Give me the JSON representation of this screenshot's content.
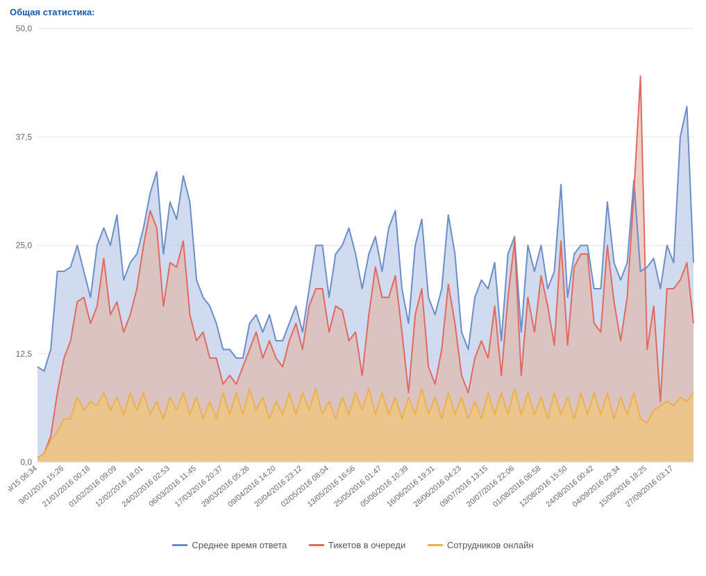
{
  "title": "Общая статистика:",
  "chart": {
    "type": "area",
    "background": "#ffffff",
    "grid_color": "#e6e6e6",
    "axis_text_color": "#666666",
    "axis_fontsize": 12,
    "x_label_fontsize": 11,
    "x_label_rotation": -40,
    "ylim": [
      0,
      50
    ],
    "ytick_format": "comma_decimal",
    "yticks": [
      "0,0",
      "12,5",
      "25,0",
      "37,5",
      "50,0"
    ],
    "ytick_values": [
      0,
      12.5,
      25,
      37.5,
      50
    ],
    "x_labels": [
      "9/15 06:34",
      "9/01/2016 15:26",
      "21/01/2016 00:18",
      "01/02/2016 09:09",
      "12/02/2016 18:01",
      "24/02/2016 02:53",
      "06/03/2016 11:45",
      "17/03/2016 20:37",
      "29/03/2016 05:28",
      "09/04/2016 14:20",
      "20/04/2016 23:12",
      "02/05/2016 08:04",
      "13/05/2016 16:56",
      "25/05/2016 01:47",
      "05/06/2016 10:39",
      "16/06/2016 19:31",
      "28/06/2016 04:23",
      "09/07/2016 13:15",
      "20/07/2016 22:06",
      "01/08/2016 06:58",
      "12/08/2016 15:50",
      "24/08/2016 00:42",
      "04/09/2016 09:34",
      "15/09/2016 18:25",
      "27/09/2016 03:17"
    ],
    "x_label_step": 4,
    "series": [
      {
        "name": "Среднее время ответа",
        "stroke": "#6b8dc8",
        "fill": "#b8c7e6",
        "fill_opacity": 0.65,
        "line_width": 2,
        "data": [
          11,
          10.5,
          13,
          22,
          22,
          22.5,
          25,
          22,
          19,
          25,
          27,
          25,
          28.5,
          21,
          23,
          24,
          27,
          31,
          33.5,
          24,
          30,
          28,
          33,
          30,
          21,
          19,
          18,
          16,
          13,
          13,
          12,
          12,
          16,
          17,
          15,
          17,
          14,
          14,
          16,
          18,
          15,
          20,
          25,
          25,
          19,
          24,
          25,
          27,
          24,
          20,
          24,
          26,
          22,
          27,
          29,
          20,
          16,
          25,
          28,
          19,
          17,
          20,
          28.5,
          24,
          15,
          13,
          19,
          21,
          20,
          23,
          14,
          24,
          26,
          15,
          25,
          22,
          25,
          20,
          22,
          32,
          19,
          24,
          25,
          25,
          20,
          20,
          30,
          23,
          21,
          23,
          32.5,
          22,
          22.5,
          23.5,
          20,
          25,
          23,
          37.5,
          41,
          23
        ]
      },
      {
        "name": "Тикетов в очереди",
        "stroke": "#e2695d",
        "fill": "#e1b3a4",
        "fill_opacity": 0.6,
        "line_width": 2,
        "data": [
          0.5,
          1,
          3,
          8,
          12,
          14,
          18.5,
          19,
          16,
          18,
          23.5,
          17,
          18.5,
          15,
          17,
          20,
          25,
          29,
          27,
          18,
          23,
          22.5,
          25.5,
          17,
          14,
          15,
          12,
          12,
          9,
          10,
          9,
          11,
          13,
          15,
          12,
          14,
          12,
          11,
          14,
          16,
          13,
          18,
          20,
          20,
          15,
          18,
          17.5,
          14,
          15,
          10,
          17,
          22.5,
          19,
          19,
          21.5,
          15,
          8,
          17,
          20,
          11,
          9,
          13,
          20.5,
          16,
          10,
          8,
          12,
          14,
          12,
          18,
          10,
          19,
          25.5,
          10,
          19,
          15,
          21.5,
          18,
          13.5,
          25.5,
          13.5,
          22.5,
          24,
          24,
          16,
          15,
          25,
          18.5,
          14,
          19,
          31,
          44.5,
          13,
          18,
          7,
          20,
          20,
          21,
          23,
          16
        ]
      },
      {
        "name": "Сотрудников онлайн",
        "stroke": "#edb14a",
        "fill": "#f0c680",
        "fill_opacity": 0.8,
        "line_width": 2,
        "data": [
          0.5,
          1,
          2.5,
          3.5,
          5,
          5,
          7.5,
          6,
          7,
          6.5,
          8,
          6,
          7.5,
          5.5,
          8,
          6,
          8,
          5.5,
          7,
          5,
          7.5,
          6,
          8,
          5.5,
          7.5,
          5,
          7,
          5,
          8,
          5.5,
          8,
          5.5,
          8.5,
          6,
          7.5,
          5,
          7,
          5.5,
          8,
          5.5,
          8,
          6,
          8.5,
          5.5,
          7,
          5,
          7.5,
          5.5,
          8,
          6,
          8.5,
          5.5,
          8,
          5.5,
          7.5,
          5,
          7.5,
          5.5,
          8.5,
          5.5,
          7.5,
          5,
          8,
          5.5,
          7.5,
          5,
          7,
          5,
          8,
          5.5,
          8,
          5.5,
          8.5,
          5.5,
          8,
          5.5,
          7.5,
          5,
          8,
          5.5,
          7.5,
          5,
          8,
          5.5,
          8,
          5.5,
          8,
          5,
          7.5,
          5.5,
          8,
          5,
          4.5,
          6,
          6.5,
          7,
          6.5,
          7.5,
          7,
          8
        ]
      }
    ]
  },
  "legend": {
    "items": [
      {
        "label": "Среднее время ответа",
        "color": "#6b8dc8"
      },
      {
        "label": "Тикетов в очереди",
        "color": "#e2695d"
      },
      {
        "label": "Сотрудников онлайн",
        "color": "#edb14a"
      }
    ]
  }
}
